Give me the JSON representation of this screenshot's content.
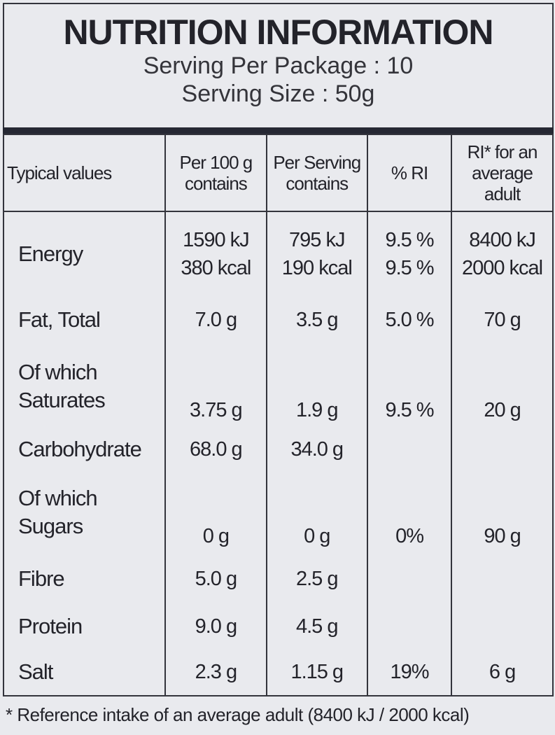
{
  "header": {
    "title": "NUTRITION INFORMATION",
    "lines": [
      "Serving Per Package : 10",
      "Serving Size : 50g"
    ]
  },
  "table": {
    "headers": [
      [
        "Typical values"
      ],
      [
        "Per 100 g",
        "contains"
      ],
      [
        "Per Serving",
        "contains"
      ],
      [
        "% RI"
      ],
      [
        "RI* for an",
        "average",
        "adult"
      ]
    ],
    "rows": [
      {
        "label": [
          "Energy"
        ],
        "per100": [
          "1590 kJ",
          "380 kcal"
        ],
        "perServing": [
          "795 kJ",
          "190 kcal"
        ],
        "ri": [
          "9.5 %",
          "9.5 %"
        ],
        "riAdult": [
          "8400 kJ",
          "2000 kcal"
        ]
      },
      {
        "label": [
          "Fat, Total"
        ],
        "per100": [
          "7.0 g"
        ],
        "perServing": [
          "3.5 g"
        ],
        "ri": [
          "5.0 %"
        ],
        "riAdult": [
          "70 g"
        ]
      },
      {
        "label": [
          "Of which",
          "Saturates"
        ],
        "per100": [
          "3.75 g"
        ],
        "perServing": [
          "1.9 g"
        ],
        "ri": [
          "9.5 %"
        ],
        "riAdult": [
          "20 g"
        ]
      },
      {
        "label": [
          "Carbohydrate"
        ],
        "per100": [
          "68.0 g"
        ],
        "perServing": [
          "34.0 g"
        ]
      },
      {
        "label": [
          "Of which",
          "Sugars"
        ],
        "per100": [
          "0 g"
        ],
        "perServing": [
          "0 g"
        ],
        "ri": [
          "0%"
        ],
        "riAdult": [
          "90 g"
        ]
      },
      {
        "label": [
          "Fibre"
        ],
        "per100": [
          "5.0 g"
        ],
        "perServing": [
          "2.5 g"
        ]
      },
      {
        "label": [
          "Protein"
        ],
        "per100": [
          "9.0 g"
        ],
        "perServing": [
          "4.5 g"
        ]
      },
      {
        "label": [
          "Salt"
        ],
        "per100": [
          "2.3 g"
        ],
        "perServing": [
          "1.15 g"
        ],
        "ri": [
          "19%"
        ],
        "riAdult": [
          "6 g"
        ]
      }
    ]
  },
  "footnote": "* Reference intake of an average adult (8400 kJ / 2000 kcal)"
}
